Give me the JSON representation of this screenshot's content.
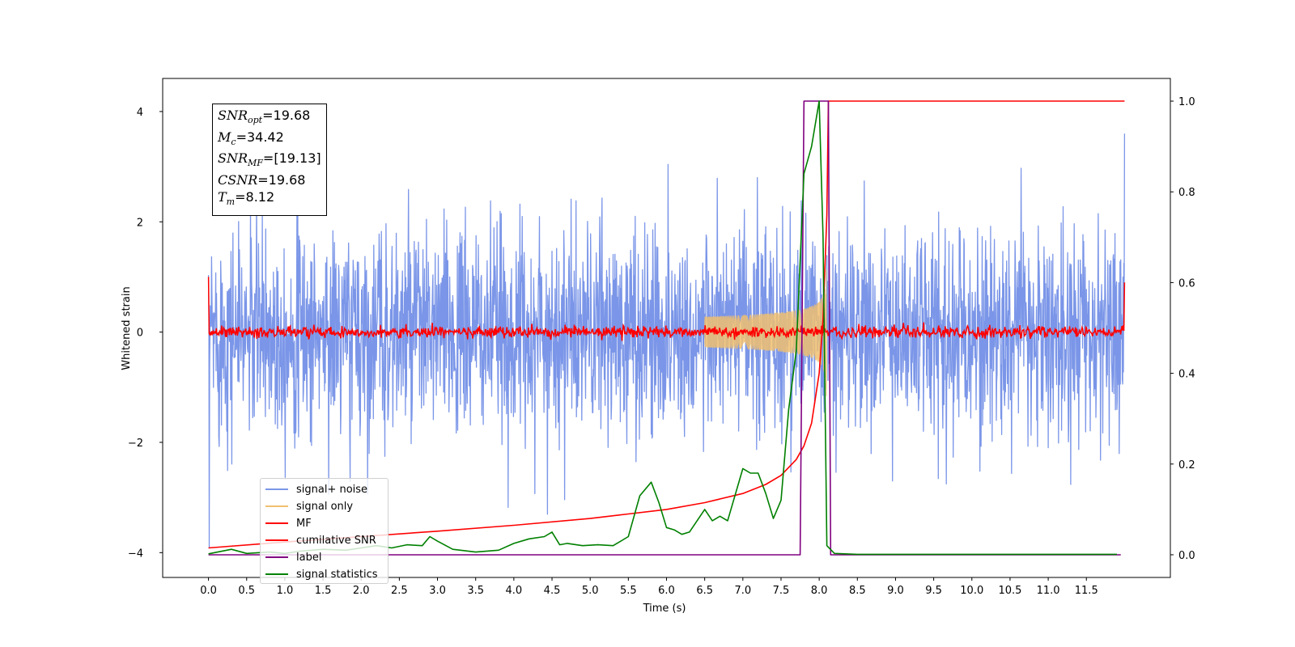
{
  "chart_data": {
    "type": "line",
    "xlabel": "Time (s)",
    "ylabel": "Whitened strain",
    "xlim": [
      -0.6,
      12.6
    ],
    "ylim": [
      -4.45,
      4.6
    ],
    "y2lim": [
      -0.05,
      1.05
    ],
    "x_ticks": [
      "0.0",
      "0.5",
      "1.0",
      "1.5",
      "2.0",
      "2.5",
      "3.0",
      "3.5",
      "4.0",
      "4.5",
      "5.0",
      "5.5",
      "6.0",
      "6.5",
      "7.0",
      "7.5",
      "8.0",
      "8.5",
      "9.0",
      "9.5",
      "10.0",
      "10.5",
      "11.0",
      "11.5"
    ],
    "y_ticks": [
      "4",
      "2",
      "0",
      "−2",
      "−4"
    ],
    "y2_ticks": [
      "1.0",
      "0.8",
      "0.6",
      "0.4",
      "0.2",
      "0.0"
    ],
    "grid": false,
    "legend_position": "lower-left",
    "annotation": {
      "snr_opt_label": "SNR",
      "snr_opt_sub": "opt",
      "snr_opt_value": "=19.68",
      "mc_label": "M",
      "mc_sub": "c",
      "mc_value": "=34.42",
      "snr_mf_label": "SNR",
      "snr_mf_sub": "MF",
      "snr_mf_value": "=[19.13]",
      "csnr_label": "CSNR",
      "csnr_value": "=19.68",
      "tm_label": "T",
      "tm_sub": "m",
      "tm_value": "=8.12"
    },
    "series": [
      {
        "name": "signal+ noise",
        "axis": "left",
        "color": "#7b96e8",
        "description_values": {
          "t_start": 0.0,
          "t_end": 12.0,
          "std": 0.95,
          "max": 3.6,
          "min": -4.0
        }
      },
      {
        "name": "signal only",
        "axis": "left",
        "color": "#f0c070",
        "chirp_peak_time": 8.1,
        "chirp_peak_amplitude": 1.4
      },
      {
        "name": "MF",
        "axis": "left",
        "color": "#ff0000",
        "baseline": 0.0,
        "noise_std": 0.05,
        "edge_values": [
          1.0,
          0.9
        ]
      },
      {
        "name": "cumilative SNR",
        "axis": "right",
        "color": "#ff0000",
        "x": [
          0.0,
          1.0,
          2.0,
          3.0,
          4.0,
          5.0,
          5.5,
          6.0,
          6.5,
          7.0,
          7.3,
          7.5,
          7.7,
          7.8,
          7.9,
          8.0,
          8.05,
          8.1,
          8.12,
          12.0
        ],
        "y": [
          0.015,
          0.028,
          0.04,
          0.052,
          0.065,
          0.08,
          0.09,
          0.1,
          0.115,
          0.135,
          0.155,
          0.175,
          0.21,
          0.24,
          0.29,
          0.4,
          0.52,
          0.75,
          1.0,
          1.0
        ]
      },
      {
        "name": "label",
        "axis": "right",
        "color": "#800080",
        "x": [
          0.0,
          7.75,
          7.8,
          8.12,
          8.15,
          11.95
        ],
        "y": [
          0.0,
          0.0,
          1.0,
          1.0,
          0.0,
          0.0
        ]
      },
      {
        "name": "signal statistics",
        "axis": "right",
        "color": "#008000",
        "x": [
          0.0,
          0.3,
          0.5,
          0.8,
          1.0,
          1.2,
          1.5,
          1.8,
          2.0,
          2.2,
          2.4,
          2.6,
          2.8,
          2.9,
          3.0,
          3.2,
          3.5,
          3.8,
          4.0,
          4.2,
          4.4,
          4.5,
          4.6,
          4.7,
          4.9,
          5.1,
          5.3,
          5.5,
          5.65,
          5.8,
          5.9,
          6.0,
          6.1,
          6.2,
          6.3,
          6.5,
          6.6,
          6.7,
          6.8,
          7.0,
          7.1,
          7.2,
          7.3,
          7.4,
          7.5,
          7.6,
          7.7,
          7.8,
          7.9,
          8.0,
          8.05,
          8.1,
          8.2,
          8.5,
          11.9
        ],
        "y": [
          0.002,
          0.012,
          0.003,
          0.006,
          0.003,
          0.008,
          0.012,
          0.01,
          0.015,
          0.02,
          0.015,
          0.022,
          0.02,
          0.04,
          0.03,
          0.012,
          0.006,
          0.01,
          0.025,
          0.035,
          0.04,
          0.05,
          0.022,
          0.025,
          0.02,
          0.022,
          0.02,
          0.04,
          0.13,
          0.16,
          0.115,
          0.06,
          0.055,
          0.045,
          0.05,
          0.1,
          0.075,
          0.085,
          0.075,
          0.19,
          0.18,
          0.18,
          0.135,
          0.08,
          0.12,
          0.32,
          0.45,
          0.84,
          0.9,
          1.0,
          0.7,
          0.02,
          0.003,
          0.001,
          0.001
        ]
      }
    ]
  }
}
